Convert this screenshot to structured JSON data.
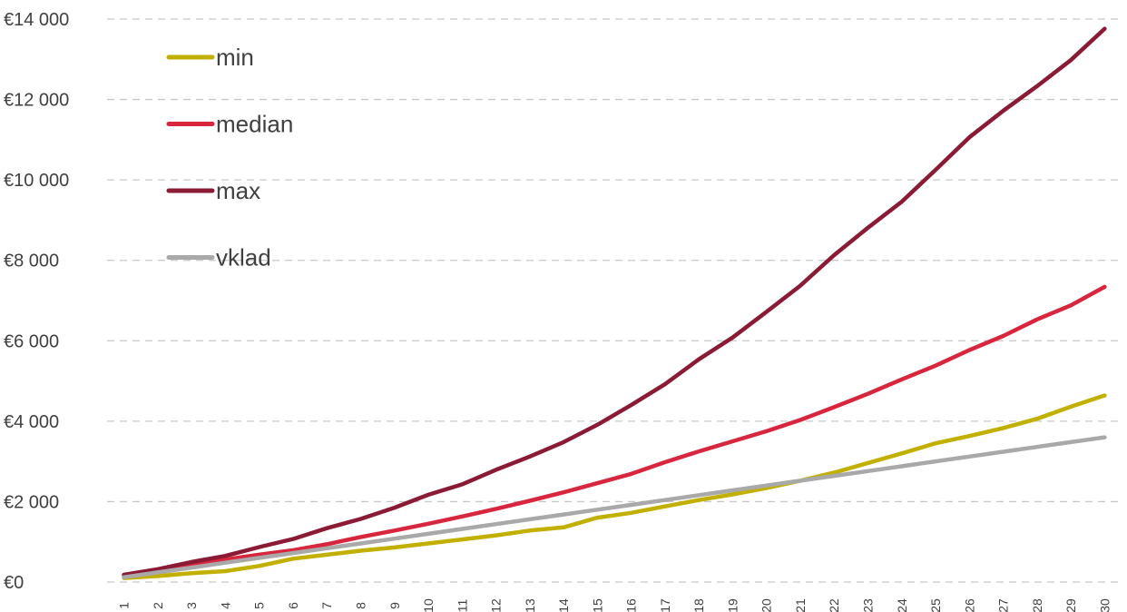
{
  "chart_data": {
    "type": "line",
    "title": "",
    "xlabel": "",
    "ylabel": "",
    "x": [
      1,
      2,
      3,
      4,
      5,
      6,
      7,
      8,
      9,
      10,
      11,
      12,
      13,
      14,
      15,
      16,
      17,
      18,
      19,
      20,
      21,
      22,
      23,
      24,
      25,
      26,
      27,
      28,
      29,
      30
    ],
    "ylim": [
      0,
      14000
    ],
    "y_ticks": [
      0,
      2000,
      4000,
      6000,
      8000,
      10000,
      12000,
      14000
    ],
    "y_tick_labels": [
      "€0",
      "€2 000",
      "€4 000",
      "€6 000",
      "€8 000",
      "€10 000",
      "€12 000",
      "€14 000"
    ],
    "grid": true,
    "legend_position": "top-left",
    "series": [
      {
        "name": "min",
        "color": "#c2b000",
        "values": [
          100,
          150,
          220,
          270,
          400,
          580,
          680,
          780,
          860,
          960,
          1060,
          1160,
          1280,
          1360,
          1600,
          1720,
          1880,
          2040,
          2180,
          2340,
          2520,
          2720,
          2960,
          3200,
          3450,
          3630,
          3830,
          4060,
          4360,
          4640
        ]
      },
      {
        "name": "median",
        "color": "#d7263d",
        "values": [
          160,
          300,
          420,
          560,
          680,
          790,
          940,
          1120,
          1280,
          1450,
          1630,
          1820,
          2020,
          2230,
          2460,
          2690,
          2980,
          3250,
          3500,
          3750,
          4030,
          4350,
          4680,
          5040,
          5380,
          5770,
          6120,
          6530,
          6880,
          7340
        ]
      },
      {
        "name": "max",
        "color": "#8b1a35",
        "values": [
          180,
          320,
          500,
          650,
          870,
          1070,
          1340,
          1570,
          1850,
          2170,
          2430,
          2790,
          3120,
          3480,
          3910,
          4400,
          4920,
          5540,
          6080,
          6720,
          7370,
          8130,
          8810,
          9460,
          10250,
          11060,
          11720,
          12330,
          12980,
          13760
        ]
      },
      {
        "name": "vklad",
        "color": "#a9a9a9",
        "values": [
          120,
          240,
          360,
          480,
          600,
          720,
          840,
          960,
          1080,
          1200,
          1320,
          1440,
          1560,
          1680,
          1800,
          1920,
          2040,
          2160,
          2280,
          2400,
          2520,
          2640,
          2760,
          2880,
          3000,
          3120,
          3240,
          3360,
          3480,
          3600
        ]
      }
    ]
  }
}
